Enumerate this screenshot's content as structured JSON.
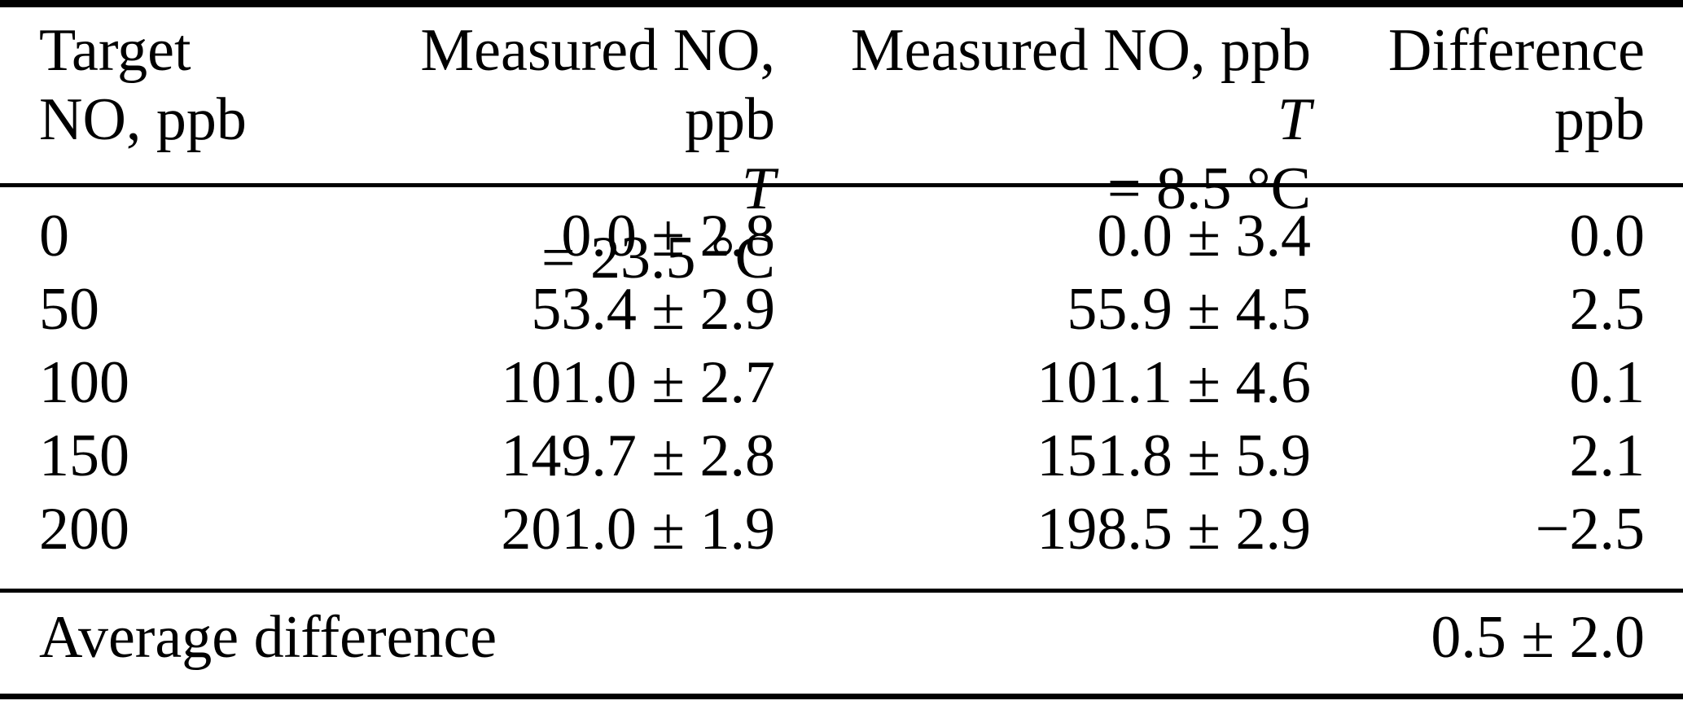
{
  "table": {
    "colors": {
      "background": "#ffffff",
      "text": "#000000",
      "rule": "#000000"
    },
    "header": {
      "col1": {
        "line1": "Target",
        "line2": "NO, ppb"
      },
      "col2": {
        "line1": "Measured NO, ppb",
        "temp_symbol": "T",
        "temp_rest": " = 23.5 °C"
      },
      "col3": {
        "line1": "Measured NO, ppb",
        "temp_symbol": "T",
        "temp_rest": " = 8.5 °C"
      },
      "col4": {
        "line1": "Difference",
        "line2": "ppb"
      }
    },
    "rows": [
      {
        "target": "0",
        "measured_23_5": "0.0 ± 2.8",
        "measured_8_5": "0.0 ± 3.4",
        "difference": "0.0"
      },
      {
        "target": "50",
        "measured_23_5": "53.4 ± 2.9",
        "measured_8_5": "55.9 ± 4.5",
        "difference": "2.5"
      },
      {
        "target": "100",
        "measured_23_5": "101.0 ± 2.7",
        "measured_8_5": "101.1 ± 4.6",
        "difference": "0.1"
      },
      {
        "target": "150",
        "measured_23_5": "149.7 ± 2.8",
        "measured_8_5": "151.8 ± 5.9",
        "difference": "2.1"
      },
      {
        "target": "200",
        "measured_23_5": "201.0 ± 1.9",
        "measured_8_5": "198.5 ± 2.9",
        "difference": "−2.5"
      }
    ],
    "footer": {
      "label": "Average difference",
      "value": "0.5 ± 2.0"
    }
  }
}
